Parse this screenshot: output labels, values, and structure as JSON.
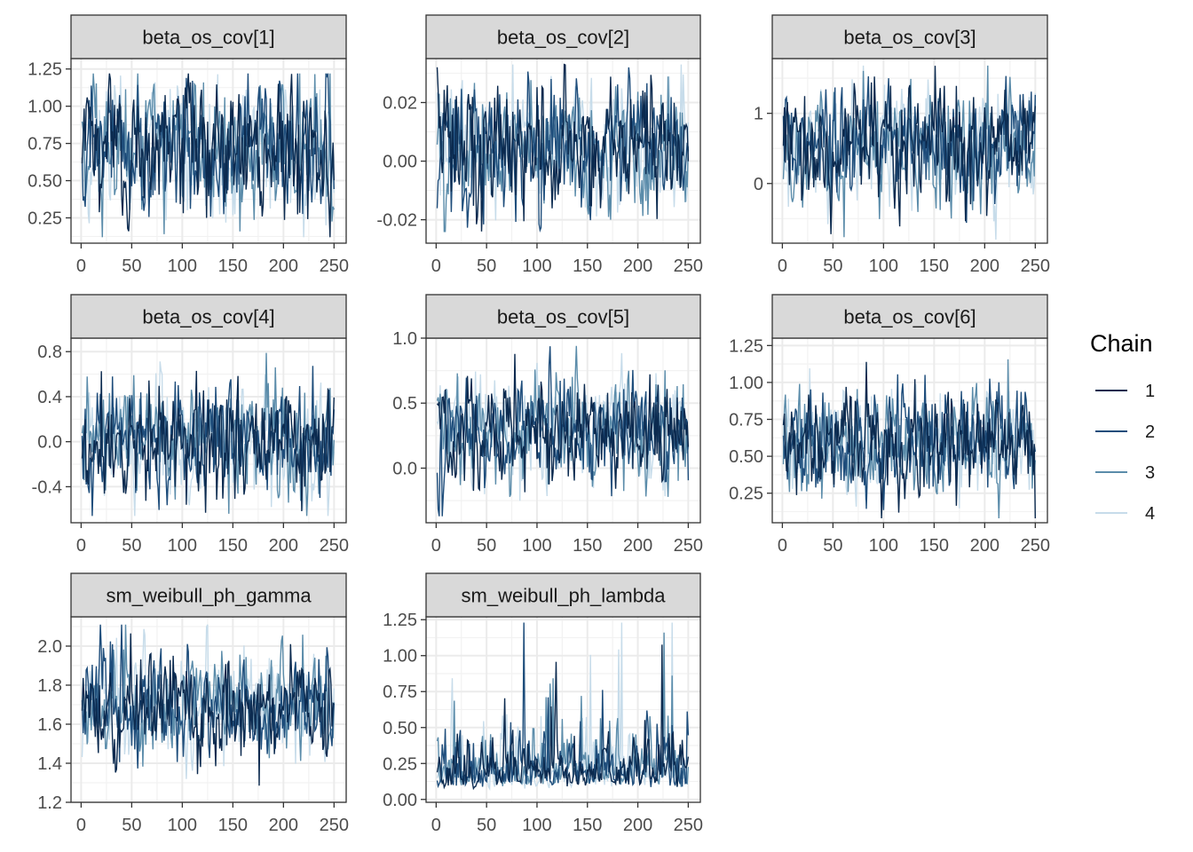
{
  "chart_data": {
    "type": "line",
    "facet_layout": "3x3 grid, free y scales",
    "grid": true,
    "legend": {
      "title": "Chain",
      "position": "right",
      "entries": [
        "1",
        "2",
        "3",
        "4"
      ],
      "colors": [
        "#0b2a4f",
        "#1e4d7b",
        "#5b8caa",
        "#c7dcea"
      ]
    },
    "iterations": 250,
    "panels": [
      {
        "title": "beta_os_cov[1]",
        "xlim": [
          -10,
          262
        ],
        "ylim": [
          0.08,
          1.32
        ],
        "xticks": [
          "0",
          "50",
          "100",
          "150",
          "200",
          "250"
        ],
        "xtick_values": [
          0,
          50,
          100,
          150,
          200,
          250
        ],
        "yticks": [
          "0.25",
          "0.50",
          "0.75",
          "1.00",
          "1.25"
        ],
        "ytick_values": [
          0.25,
          0.5,
          0.75,
          1.0,
          1.25
        ],
        "center": 0.72,
        "spread": 0.22,
        "min": 0.12,
        "max": 1.22,
        "skew": 0
      },
      {
        "title": "beta_os_cov[2]",
        "xlim": [
          -10,
          262
        ],
        "ylim": [
          -0.028,
          0.035
        ],
        "xticks": [
          "0",
          "50",
          "100",
          "150",
          "200",
          "250"
        ],
        "xtick_values": [
          0,
          50,
          100,
          150,
          200,
          250
        ],
        "yticks": [
          "0.02",
          "0.00",
          "-0.02"
        ],
        "ytick_values": [
          0.02,
          0.0,
          -0.02
        ],
        "center": 0.005,
        "spread": 0.011,
        "min": -0.024,
        "max": 0.033,
        "skew": 0
      },
      {
        "title": "beta_os_cov[3]",
        "xlim": [
          -10,
          262
        ],
        "ylim": [
          -0.85,
          1.78
        ],
        "xticks": [
          "0",
          "50",
          "100",
          "150",
          "200",
          "250"
        ],
        "xtick_values": [
          0,
          50,
          100,
          150,
          200,
          250
        ],
        "yticks": [
          "1",
          "0"
        ],
        "ytick_values": [
          1,
          0
        ],
        "center": 0.55,
        "spread": 0.42,
        "min": -0.8,
        "max": 1.68,
        "skew": 0
      },
      {
        "title": "beta_os_cov[4]",
        "xlim": [
          -10,
          262
        ],
        "ylim": [
          -0.72,
          0.92
        ],
        "xticks": [
          "0",
          "50",
          "100",
          "150",
          "200",
          "250"
        ],
        "xtick_values": [
          0,
          50,
          100,
          150,
          200,
          250
        ],
        "yticks": [
          "0.8",
          "0.4",
          "0.0",
          "-0.4"
        ],
        "ytick_values": [
          0.8,
          0.4,
          0.0,
          -0.4
        ],
        "center": 0.0,
        "spread": 0.25,
        "min": -0.66,
        "max": 0.85,
        "skew": 0
      },
      {
        "title": "beta_os_cov[5]",
        "xlim": [
          -10,
          262
        ],
        "ylim": [
          -0.42,
          1.0
        ],
        "xticks": [
          "0",
          "50",
          "100",
          "150",
          "200",
          "250"
        ],
        "xtick_values": [
          0,
          50,
          100,
          150,
          200,
          250
        ],
        "yticks": [
          "1.0",
          "0.5",
          "0.0"
        ],
        "ytick_values": [
          1.0,
          0.5,
          0.0
        ],
        "center": 0.3,
        "spread": 0.2,
        "min": -0.37,
        "max": 0.94,
        "skew": 0
      },
      {
        "title": "beta_os_cov[6]",
        "xlim": [
          -10,
          262
        ],
        "ylim": [
          0.05,
          1.3
        ],
        "xticks": [
          "0",
          "50",
          "100",
          "150",
          "200",
          "250"
        ],
        "xtick_values": [
          0,
          50,
          100,
          150,
          200,
          250
        ],
        "yticks": [
          "1.25",
          "1.00",
          "0.75",
          "0.50",
          "0.25"
        ],
        "ytick_values": [
          1.25,
          1.0,
          0.75,
          0.5,
          0.25
        ],
        "center": 0.6,
        "spread": 0.18,
        "min": 0.08,
        "max": 1.22,
        "skew": 0
      },
      {
        "title": "sm_weibull_ph_gamma",
        "xlim": [
          -10,
          262
        ],
        "ylim": [
          1.2,
          2.15
        ],
        "xticks": [
          "0",
          "50",
          "100",
          "150",
          "200",
          "250"
        ],
        "xtick_values": [
          0,
          50,
          100,
          150,
          200,
          250
        ],
        "yticks": [
          "2.0",
          "1.8",
          "1.6",
          "1.4",
          "1.2"
        ],
        "ytick_values": [
          2.0,
          1.8,
          1.6,
          1.4,
          1.2
        ],
        "center": 1.7,
        "spread": 0.13,
        "min": 1.23,
        "max": 2.11,
        "skew": 0
      },
      {
        "title": "sm_weibull_ph_lambda",
        "xlim": [
          -10,
          262
        ],
        "ylim": [
          -0.02,
          1.27
        ],
        "xticks": [
          "0",
          "50",
          "100",
          "150",
          "200",
          "250"
        ],
        "xtick_values": [
          0,
          50,
          100,
          150,
          200,
          250
        ],
        "yticks": [
          "1.25",
          "1.00",
          "0.75",
          "0.50",
          "0.25",
          "0.00"
        ],
        "ytick_values": [
          1.25,
          1.0,
          0.75,
          0.5,
          0.25,
          0.0
        ],
        "center": 0.2,
        "spread": 0.14,
        "min": 0.02,
        "max": 1.23,
        "skew": 1
      }
    ]
  }
}
